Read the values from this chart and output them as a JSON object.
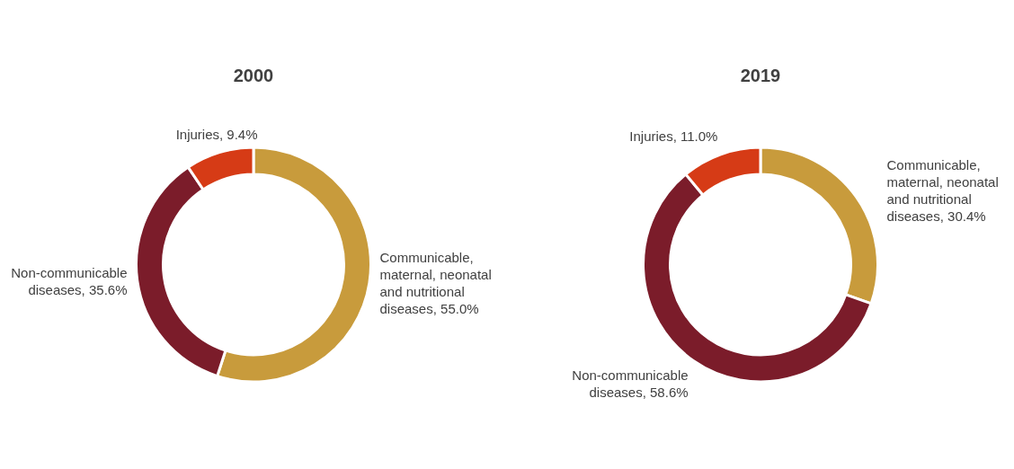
{
  "chart_data": [
    {
      "type": "donut",
      "title": "2000",
      "categories": [
        "Communicable, maternal, neonatal and nutritional diseases",
        "Non-communicable diseases",
        "Injuries"
      ],
      "values": [
        55.0,
        35.6,
        9.4
      ],
      "value_labels": [
        "55.0%",
        "35.6%",
        "9.4%"
      ],
      "colors": [
        "#c89b3c",
        "#7b1c2a",
        "#d63b16"
      ]
    },
    {
      "type": "donut",
      "title": "2019",
      "categories": [
        "Communicable, maternal, neonatal and nutritional diseases",
        "Non-communicable diseases",
        "Injuries"
      ],
      "values": [
        30.4,
        58.6,
        11.0
      ],
      "value_labels": [
        "30.4%",
        "58.6%",
        "11.0%"
      ],
      "colors": [
        "#c89b3c",
        "#7b1c2a",
        "#d63b16"
      ]
    }
  ]
}
